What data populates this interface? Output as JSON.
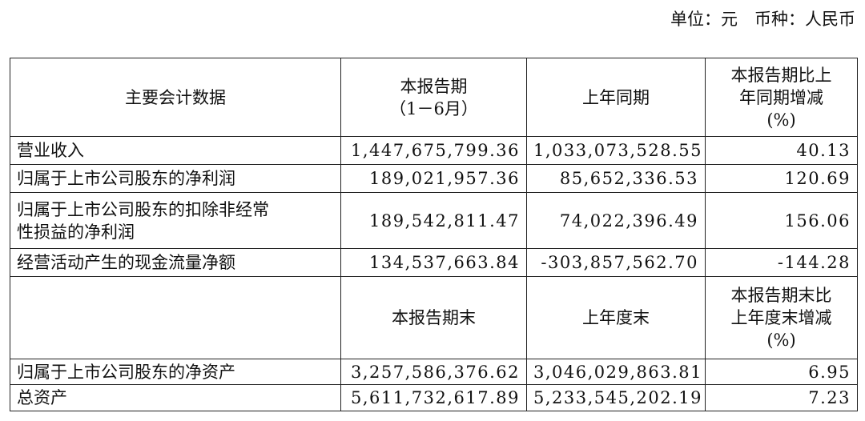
{
  "unit": "单位：元　币种：人民币",
  "table": {
    "header": [
      "主要会计数据",
      "本报告期\n（1－6月）",
      "上年同期",
      "本报告期比上\n年同期增减\n(%)"
    ],
    "rows": [
      [
        "营业收入",
        "1,447,675,799.36",
        "1,033,073,528.55",
        "40.13"
      ],
      [
        "归属于上市公司股东的净利润",
        "189,021,957.36",
        "85,652,336.53",
        "120.69"
      ],
      [
        "归属于上市公司股东的扣除非经常\n性损益的净利润",
        "189,542,811.47",
        "74,022,396.49",
        "156.06"
      ],
      [
        "经营活动产生的现金流量净额",
        "134,537,663.84",
        "-303,857,562.70",
        "-144.28"
      ]
    ],
    "header2": [
      "本报告期末",
      "上年度末",
      "本报告期末比\n上年度末增减\n(%)"
    ],
    "rows2": [
      [
        "归属于上市公司股东的净资产",
        "3,257,586,376.62",
        "3,046,029,863.81",
        "6.95"
      ],
      [
        "总资产",
        "5,611,732,617.89",
        "5,233,545,202.19",
        "7.23"
      ]
    ]
  }
}
